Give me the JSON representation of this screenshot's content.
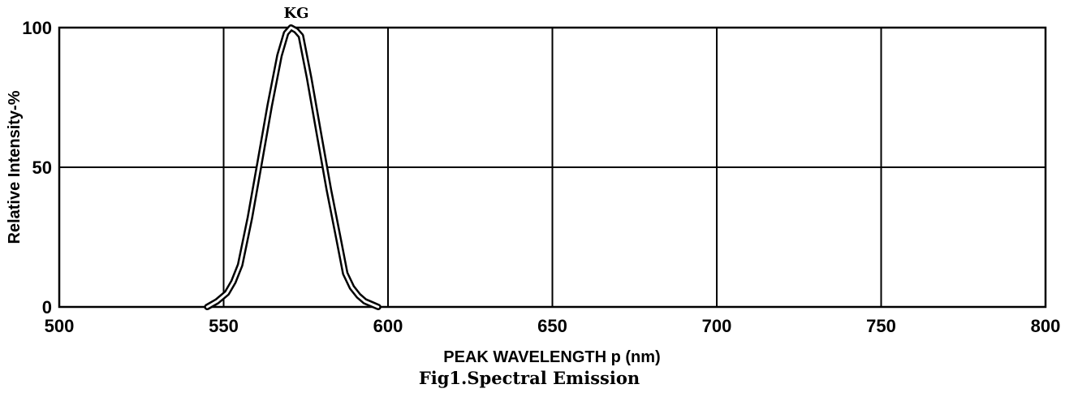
{
  "chart_data": {
    "type": "line",
    "xlim": [
      500,
      800
    ],
    "ylim": [
      0,
      100
    ],
    "x_ticks": [
      "500",
      "550",
      "600",
      "650",
      "700",
      "750",
      "800"
    ],
    "y_ticks": [
      "0",
      "50",
      "100"
    ],
    "xlabel": "PEAK WAVELENGTH  p (nm)",
    "ylabel": "Relative Intensity-%",
    "caption": "Fig1.Spectral Emission",
    "grid": true,
    "series": [
      {
        "name": "KG",
        "x": [
          545,
          548,
          551,
          553,
          555,
          558,
          561,
          564,
          567,
          569,
          570.5,
          572,
          573.5,
          576,
          579,
          582,
          585,
          587,
          589,
          591,
          593,
          595,
          597
        ],
        "y": [
          0,
          2,
          5,
          9,
          15,
          32,
          52,
          72,
          90,
          98,
          100,
          99,
          97,
          82,
          62,
          42,
          24,
          12,
          7,
          4,
          2,
          1,
          0
        ]
      }
    ]
  }
}
